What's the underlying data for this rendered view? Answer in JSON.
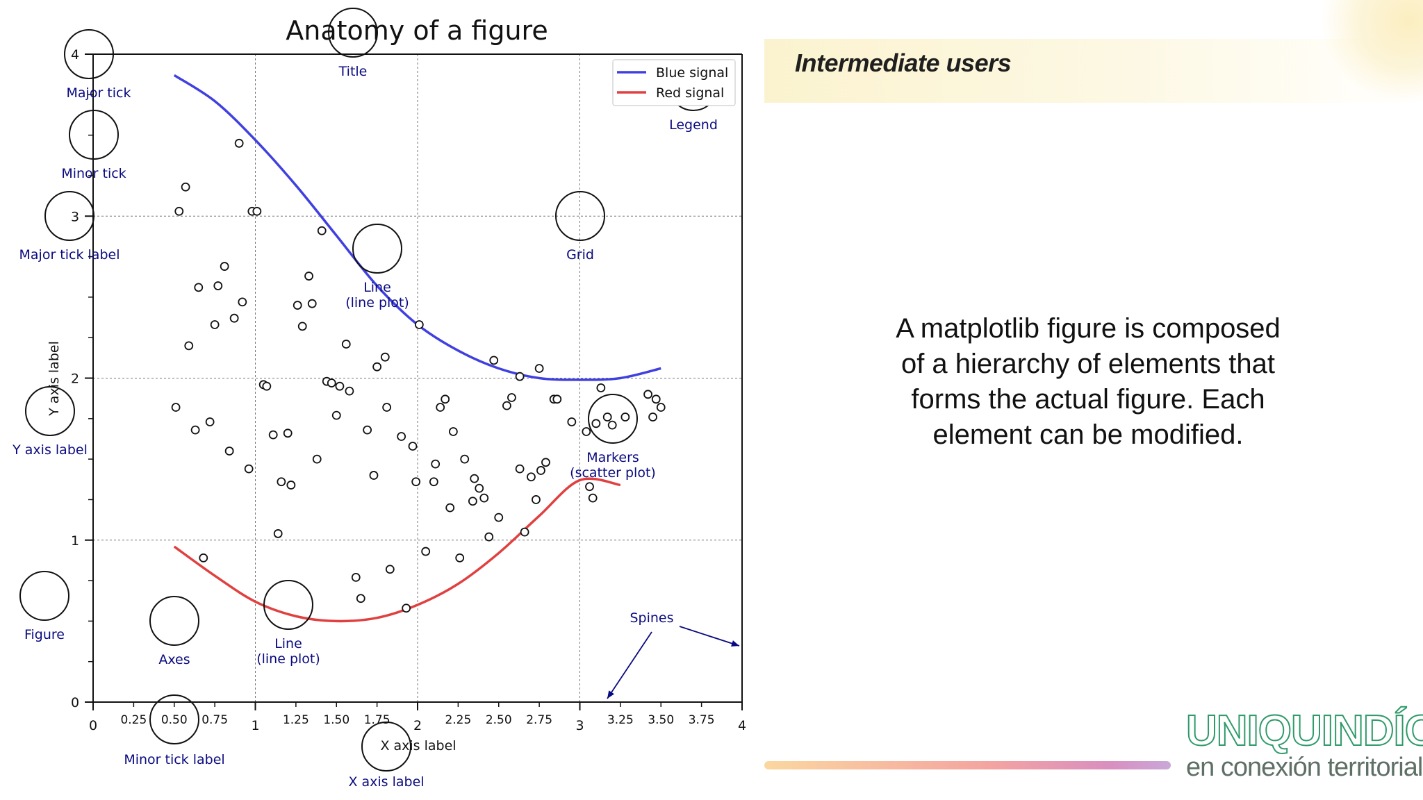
{
  "slide": {
    "header_title": "Intermediate users",
    "description": "A matplotlib figure is composed of a hierarchy of elements that forms the actual figure. Each element can be modified.",
    "logo_main": "UNIQUINDÍO",
    "logo_sub": "en conexión territorial"
  },
  "colors": {
    "blue_signal": "#4040e0",
    "red_signal": "#e04040",
    "annotation": "#0a0a80",
    "header_band": "#fbf3cf"
  },
  "chart_data": {
    "type": "line",
    "title": "Anatomy of a figure",
    "xlabel": "X axis label",
    "ylabel": "Y axis label",
    "xlim": [
      0,
      4
    ],
    "ylim": [
      0,
      4
    ],
    "grid": true,
    "legend_position": "top-right",
    "x_major_ticks": [
      0,
      1,
      2,
      3,
      4
    ],
    "x_major_tick_labels": [
      "0",
      "1",
      "2",
      "3",
      "4"
    ],
    "x_minor_ticks": [
      0.25,
      0.5,
      0.75,
      1.25,
      1.5,
      1.75,
      2.25,
      2.5,
      2.75,
      3.25,
      3.5,
      3.75
    ],
    "x_minor_tick_labels": [
      "0.25",
      "0.50",
      "0.75",
      "1.25",
      "1.50",
      "1.75",
      "2.25",
      "2.50",
      "2.75",
      "3.25",
      "3.50",
      "3.75"
    ],
    "y_major_ticks": [
      0,
      1,
      2,
      3,
      4
    ],
    "y_major_tick_labels": [
      "0",
      "1",
      "2",
      "3",
      "4"
    ],
    "y_minor_ticks": [
      0.25,
      0.5,
      0.75,
      1.25,
      1.5,
      1.75,
      2.25,
      2.5,
      2.75,
      3.25,
      3.5,
      3.75
    ],
    "series": [
      {
        "name": "Blue signal",
        "color": "#4040e0",
        "x": [
          0.5,
          0.75,
          1.0,
          1.25,
          1.5,
          1.75,
          2.0,
          2.25,
          2.5,
          2.75,
          3.0,
          3.25,
          3.5
        ],
        "y": [
          3.87,
          3.71,
          3.47,
          3.19,
          2.88,
          2.57,
          2.33,
          2.17,
          2.06,
          2.0,
          1.99,
          2.0,
          2.06
        ]
      },
      {
        "name": "Red signal",
        "color": "#e04040",
        "x": [
          0.5,
          0.75,
          1.0,
          1.25,
          1.5,
          1.75,
          2.0,
          2.25,
          2.5,
          2.75,
          3.0,
          3.25
        ],
        "y": [
          0.96,
          0.78,
          0.62,
          0.53,
          0.5,
          0.52,
          0.6,
          0.73,
          0.92,
          1.15,
          1.37,
          1.34
        ]
      }
    ],
    "scatter": {
      "marker": "circle-open",
      "points": [
        [
          0.9,
          3.45
        ],
        [
          0.57,
          3.18
        ],
        [
          0.53,
          3.03
        ],
        [
          0.98,
          3.03
        ],
        [
          1.01,
          3.03
        ],
        [
          1.41,
          2.91
        ],
        [
          0.81,
          2.69
        ],
        [
          1.33,
          2.63
        ],
        [
          0.65,
          2.56
        ],
        [
          0.77,
          2.57
        ],
        [
          0.92,
          2.47
        ],
        [
          1.26,
          2.45
        ],
        [
          1.35,
          2.46
        ],
        [
          0.75,
          2.33
        ],
        [
          0.87,
          2.37
        ],
        [
          1.29,
          2.32
        ],
        [
          0.59,
          2.2
        ],
        [
          1.56,
          2.21
        ],
        [
          1.8,
          2.13
        ],
        [
          2.01,
          2.33
        ],
        [
          1.75,
          2.07
        ],
        [
          2.47,
          2.11
        ],
        [
          1.05,
          1.96
        ],
        [
          1.07,
          1.95
        ],
        [
          1.44,
          1.98
        ],
        [
          1.47,
          1.97
        ],
        [
          1.52,
          1.95
        ],
        [
          1.58,
          1.92
        ],
        [
          2.63,
          2.01
        ],
        [
          2.75,
          2.06
        ],
        [
          3.13,
          1.94
        ],
        [
          0.51,
          1.82
        ],
        [
          0.63,
          1.68
        ],
        [
          0.72,
          1.73
        ],
        [
          1.5,
          1.77
        ],
        [
          1.69,
          1.68
        ],
        [
          1.81,
          1.82
        ],
        [
          1.9,
          1.64
        ],
        [
          2.14,
          1.82
        ],
        [
          2.17,
          1.87
        ],
        [
          2.22,
          1.67
        ],
        [
          2.55,
          1.83
        ],
        [
          2.58,
          1.88
        ],
        [
          2.84,
          1.87
        ],
        [
          2.86,
          1.87
        ],
        [
          2.95,
          1.73
        ],
        [
          3.04,
          1.67
        ],
        [
          3.1,
          1.72
        ],
        [
          3.17,
          1.76
        ],
        [
          3.2,
          1.71
        ],
        [
          3.28,
          1.76
        ],
        [
          3.42,
          1.9
        ],
        [
          3.47,
          1.87
        ],
        [
          3.5,
          1.82
        ],
        [
          3.45,
          1.76
        ],
        [
          0.84,
          1.55
        ],
        [
          0.96,
          1.44
        ],
        [
          1.11,
          1.65
        ],
        [
          1.2,
          1.66
        ],
        [
          1.16,
          1.36
        ],
        [
          1.22,
          1.34
        ],
        [
          1.38,
          1.5
        ],
        [
          1.73,
          1.4
        ],
        [
          1.97,
          1.58
        ],
        [
          1.99,
          1.36
        ],
        [
          2.1,
          1.36
        ],
        [
          2.11,
          1.47
        ],
        [
          2.29,
          1.5
        ],
        [
          2.35,
          1.38
        ],
        [
          2.38,
          1.32
        ],
        [
          2.34,
          1.24
        ],
        [
          2.41,
          1.26
        ],
        [
          2.2,
          1.2
        ],
        [
          2.63,
          1.44
        ],
        [
          2.7,
          1.39
        ],
        [
          2.76,
          1.43
        ],
        [
          2.79,
          1.48
        ],
        [
          2.5,
          1.14
        ],
        [
          2.44,
          1.02
        ],
        [
          2.66,
          1.05
        ],
        [
          2.73,
          1.25
        ],
        [
          3.08,
          1.26
        ],
        [
          3.06,
          1.33
        ],
        [
          1.14,
          1.04
        ],
        [
          0.68,
          0.89
        ],
        [
          2.05,
          0.93
        ],
        [
          2.26,
          0.89
        ],
        [
          1.62,
          0.77
        ],
        [
          1.83,
          0.82
        ],
        [
          1.65,
          0.64
        ],
        [
          1.93,
          0.58
        ]
      ]
    },
    "annotations": [
      {
        "label": "Title",
        "text": "Title"
      },
      {
        "label": "Major tick",
        "text": "Major tick"
      },
      {
        "label": "Minor tick",
        "text": "Minor tick"
      },
      {
        "label": "Major tick label",
        "text": "Major tick label"
      },
      {
        "label": "Legend",
        "text": "Legend"
      },
      {
        "label": "Grid",
        "text": "Grid"
      },
      {
        "label": "Line (line plot)",
        "text": "Line\n(line plot)"
      },
      {
        "label": "Y axis label",
        "text": "Y axis label"
      },
      {
        "label": "Markers (scatter plot)",
        "text": "Markers\n(scatter plot)"
      },
      {
        "label": "Figure",
        "text": "Figure"
      },
      {
        "label": "Axes",
        "text": "Axes"
      },
      {
        "label": "Line (line plot) 2",
        "text": "Line\n(line plot)"
      },
      {
        "label": "Spines",
        "text": "Spines"
      },
      {
        "label": "Minor tick label",
        "text": "Minor tick label"
      },
      {
        "label": "X axis label",
        "text": "X axis label"
      }
    ]
  }
}
